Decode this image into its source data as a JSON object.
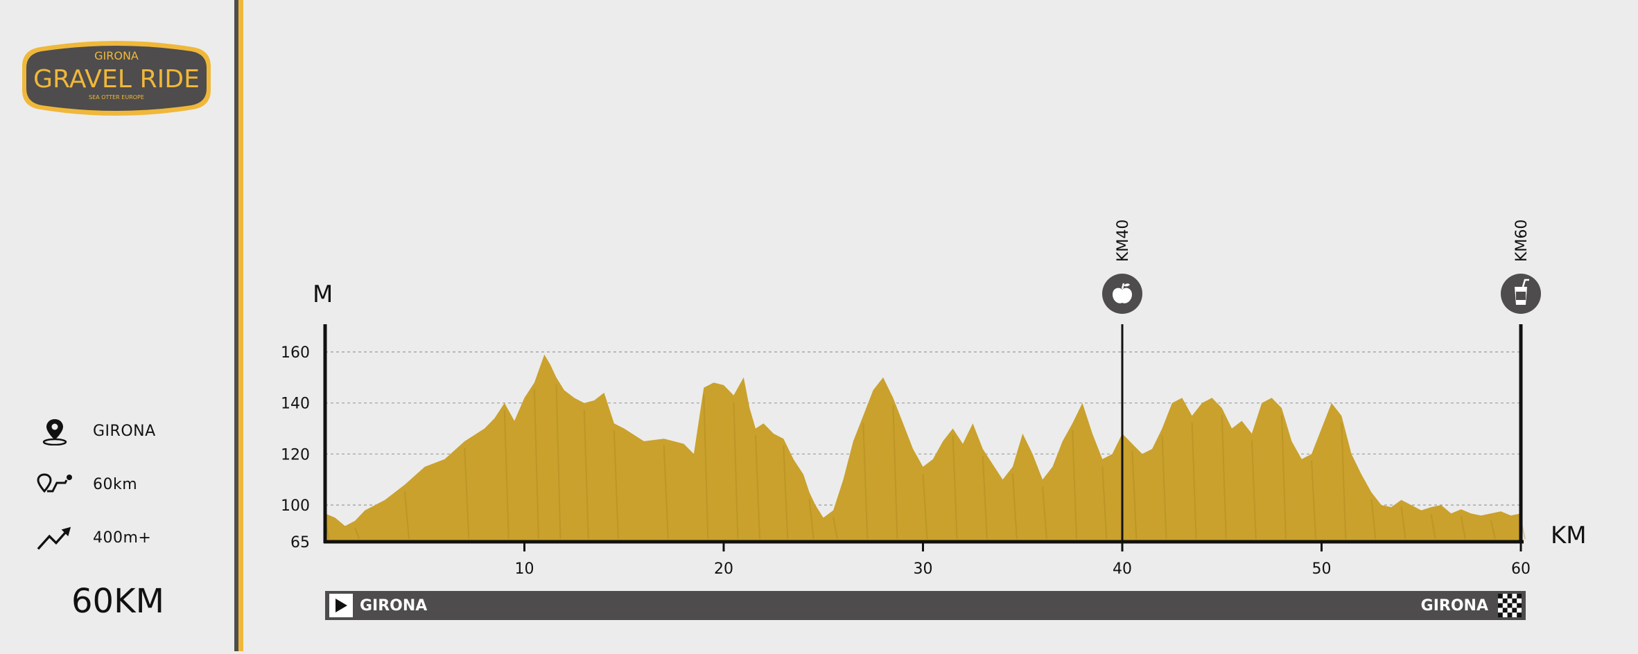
{
  "logo": {
    "top_text": "GIRONA",
    "main_text": "GRAVEL RIDE",
    "sub_text": "SEA OTTER EUROPE"
  },
  "sidebar": {
    "location": "GIRONA",
    "distance": "60km",
    "elevation": "400m+",
    "total": "60KM",
    "icons": [
      "location-pin-icon",
      "route-icon",
      "elevation-icon"
    ]
  },
  "colors": {
    "terrain": "#c9a12c",
    "accent": "#f0b83a",
    "dark": "#4e4c4c",
    "background": "#ececec"
  },
  "chart_data": {
    "type": "area",
    "ylabel": "M",
    "xlabel": "KM",
    "yticks": [
      65,
      100,
      120,
      140,
      160
    ],
    "xticks": [
      10,
      20,
      30,
      40,
      50,
      60
    ],
    "xlim": [
      0,
      60
    ],
    "ylim": [
      65,
      170
    ],
    "grid": "dashed-horizontal",
    "x": [
      0,
      0.5,
      1,
      1.5,
      2,
      3,
      4,
      5,
      6,
      7,
      8,
      8.5,
      9,
      9.5,
      10,
      10.5,
      11,
      11.3,
      11.6,
      12,
      12.5,
      13,
      13.5,
      14,
      14.5,
      15,
      16,
      17,
      18,
      18.5,
      19,
      19.5,
      20,
      20.5,
      21,
      21.3,
      21.6,
      22,
      22.5,
      23,
      23.5,
      24,
      24.3,
      24.6,
      25,
      25.5,
      26,
      26.5,
      27,
      27.5,
      28,
      28.5,
      29,
      29.5,
      30,
      30.5,
      31,
      31.5,
      32,
      32.5,
      33,
      33.5,
      34,
      34.5,
      35,
      35.5,
      36,
      36.5,
      37,
      37.5,
      38,
      38.5,
      39,
      39.5,
      40,
      40.5,
      41,
      41.5,
      42,
      42.5,
      43,
      43.5,
      44,
      44.5,
      45,
      45.5,
      46,
      46.5,
      47,
      47.5,
      48,
      48.5,
      49,
      49.5,
      50,
      50.5,
      51,
      51.5,
      52,
      52.5,
      53,
      53.5,
      54,
      54.5,
      55,
      55.5,
      56,
      56.5,
      57,
      57.5,
      58,
      58.5,
      59,
      59.5,
      60
    ],
    "y": [
      92,
      88,
      80,
      85,
      95,
      102,
      108,
      115,
      118,
      125,
      130,
      134,
      140,
      133,
      142,
      148,
      159,
      155,
      150,
      145,
      142,
      140,
      141,
      144,
      132,
      130,
      125,
      126,
      124,
      120,
      146,
      148,
      147,
      143,
      150,
      138,
      130,
      132,
      128,
      126,
      118,
      112,
      105,
      100,
      88,
      95,
      110,
      125,
      135,
      145,
      150,
      142,
      132,
      122,
      115,
      118,
      125,
      130,
      124,
      132,
      122,
      116,
      110,
      115,
      128,
      120,
      110,
      115,
      125,
      132,
      140,
      128,
      118,
      120,
      128,
      124,
      120,
      122,
      130,
      140,
      142,
      135,
      140,
      142,
      138,
      130,
      133,
      128,
      140,
      142,
      138,
      125,
      118,
      120,
      130,
      140,
      135,
      120,
      112,
      105,
      100,
      98,
      102,
      100,
      95,
      98,
      100,
      92,
      96,
      92,
      90,
      92,
      94,
      90,
      92
    ]
  },
  "markers": [
    {
      "km": 40,
      "label": "KM40",
      "icon": "apple-icon"
    },
    {
      "km": 60,
      "label": "KM60",
      "icon": "drink-icon"
    }
  ],
  "route": {
    "start": "GIRONA",
    "end": "GIRONA",
    "start_icon": "play-icon",
    "end_icon": "checkered-flag-icon"
  }
}
